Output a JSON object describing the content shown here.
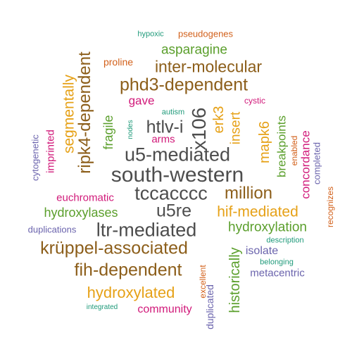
{
  "colors": {
    "gray": "#4d4d4d",
    "brown": "#8c5e1a",
    "orange": "#e6a117",
    "green": "#5b9f2c",
    "magenta": "#d11a7a",
    "purple": "#6b64ad",
    "teal": "#1f9a7a",
    "rust": "#d2601a"
  },
  "words": [
    {
      "text": "south-western",
      "color": "gray"
    },
    {
      "text": "u5-mediated",
      "color": "gray"
    },
    {
      "text": "tccacccc",
      "color": "gray"
    },
    {
      "text": "ltr-mediated",
      "color": "gray"
    },
    {
      "text": "u5re",
      "color": "gray"
    },
    {
      "text": "htlv-i",
      "color": "gray"
    },
    {
      "text": "x106",
      "color": "gray"
    },
    {
      "text": "krüppel-associated",
      "color": "brown"
    },
    {
      "text": "phd3-dependent",
      "color": "brown"
    },
    {
      "text": "inter-molecular",
      "color": "brown"
    },
    {
      "text": "fih-dependent",
      "color": "brown"
    },
    {
      "text": "ripk4-dependent",
      "color": "brown"
    },
    {
      "text": "million",
      "color": "brown"
    },
    {
      "text": "hif-mediated",
      "color": "orange"
    },
    {
      "text": "hydroxylated",
      "color": "orange"
    },
    {
      "text": "segmentally",
      "color": "orange"
    },
    {
      "text": "mapk6",
      "color": "orange"
    },
    {
      "text": "erk3",
      "color": "orange"
    },
    {
      "text": "insert",
      "color": "orange"
    },
    {
      "text": "historically",
      "color": "green"
    },
    {
      "text": "hydroxylation",
      "color": "green"
    },
    {
      "text": "hydroxylases",
      "color": "green"
    },
    {
      "text": "asparagine",
      "color": "green"
    },
    {
      "text": "fragile",
      "color": "green"
    },
    {
      "text": "breakpoints",
      "color": "green"
    },
    {
      "text": "concordance",
      "color": "magenta"
    },
    {
      "text": "euchromatic",
      "color": "magenta"
    },
    {
      "text": "community",
      "color": "magenta"
    },
    {
      "text": "imprinted",
      "color": "magenta"
    },
    {
      "text": "gave",
      "color": "magenta"
    },
    {
      "text": "arms",
      "color": "magenta"
    },
    {
      "text": "cystic",
      "color": "magenta"
    },
    {
      "text": "isolate",
      "color": "purple"
    },
    {
      "text": "metacentric",
      "color": "purple"
    },
    {
      "text": "duplications",
      "color": "purple"
    },
    {
      "text": "duplicated",
      "color": "purple"
    },
    {
      "text": "cytogenetic",
      "color": "purple"
    },
    {
      "text": "completed",
      "color": "purple"
    },
    {
      "text": "pseudogenes",
      "color": "rust"
    },
    {
      "text": "proline",
      "color": "rust"
    },
    {
      "text": "enabled",
      "color": "rust"
    },
    {
      "text": "excellent",
      "color": "rust"
    },
    {
      "text": "recognizes",
      "color": "rust"
    },
    {
      "text": "hypoxic",
      "color": "teal"
    },
    {
      "text": "autism",
      "color": "teal"
    },
    {
      "text": "nodes",
      "color": "teal"
    },
    {
      "text": "description",
      "color": "teal"
    },
    {
      "text": "belonging",
      "color": "teal"
    },
    {
      "text": "integrated",
      "color": "teal"
    }
  ]
}
